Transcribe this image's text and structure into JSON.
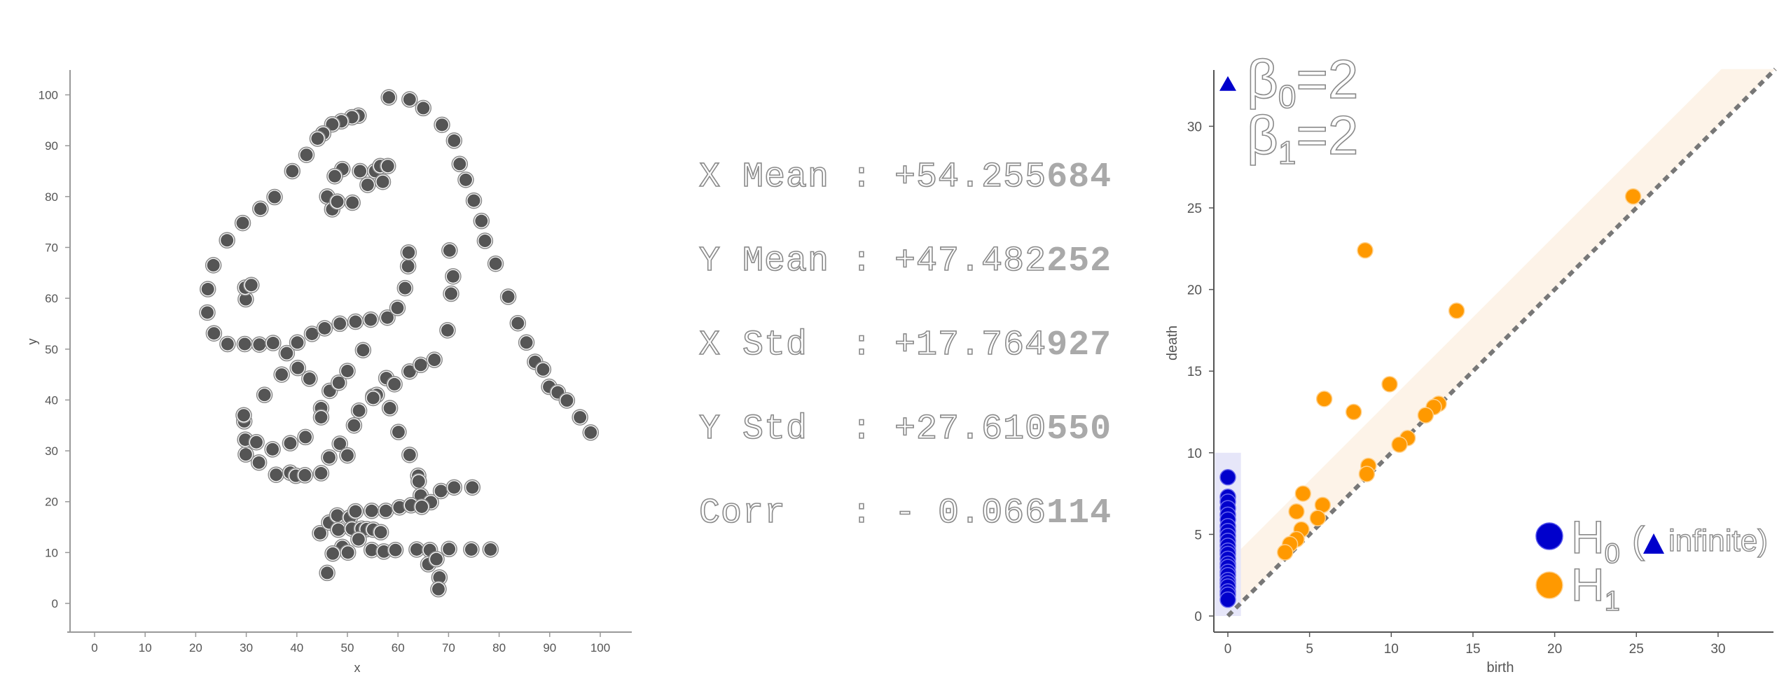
{
  "chart_data": [
    {
      "type": "scatter",
      "title": "",
      "xlabel": "x",
      "ylabel": "y",
      "xlim": [
        -5,
        105
      ],
      "ylim": [
        -5,
        105
      ],
      "xticks": [
        "0",
        "10",
        "20",
        "30",
        "40",
        "50",
        "60",
        "70",
        "80",
        "90",
        "100"
      ],
      "yticks": [
        "0",
        "10",
        "20",
        "30",
        "40",
        "50",
        "60",
        "70",
        "80",
        "90",
        "100"
      ],
      "marker_color": "#555555",
      "points": [
        [
          58.2,
          99.5
        ],
        [
          62.3,
          99.1
        ],
        [
          65.0,
          97.4
        ],
        [
          68.7,
          94.1
        ],
        [
          71.1,
          91.0
        ],
        [
          72.2,
          86.4
        ],
        [
          73.4,
          83.3
        ],
        [
          75.0,
          79.2
        ],
        [
          76.5,
          75.2
        ],
        [
          77.2,
          71.3
        ],
        [
          79.3,
          66.8
        ],
        [
          81.8,
          60.3
        ],
        [
          83.7,
          55.1
        ],
        [
          85.4,
          51.3
        ],
        [
          87.1,
          47.5
        ],
        [
          88.7,
          46.0
        ],
        [
          89.9,
          42.6
        ],
        [
          91.6,
          41.5
        ],
        [
          93.4,
          39.9
        ],
        [
          96.0,
          36.6
        ],
        [
          98.1,
          33.6
        ],
        [
          52.2,
          95.9
        ],
        [
          50.9,
          95.6
        ],
        [
          48.8,
          94.8
        ],
        [
          47.0,
          94.2
        ],
        [
          45.2,
          92.4
        ],
        [
          44.1,
          91.4
        ],
        [
          41.9,
          88.2
        ],
        [
          39.1,
          85.0
        ],
        [
          35.6,
          79.9
        ],
        [
          32.8,
          77.6
        ],
        [
          29.3,
          74.8
        ],
        [
          26.2,
          71.4
        ],
        [
          23.5,
          66.5
        ],
        [
          22.4,
          61.8
        ],
        [
          22.3,
          57.2
        ],
        [
          23.6,
          53.1
        ],
        [
          26.3,
          51.0
        ],
        [
          29.7,
          51.0
        ],
        [
          32.6,
          50.9
        ],
        [
          35.3,
          51.2
        ],
        [
          38.0,
          49.2
        ],
        [
          40.1,
          51.3
        ],
        [
          43.0,
          53.0
        ],
        [
          45.5,
          54.1
        ],
        [
          48.5,
          55.0
        ],
        [
          51.6,
          55.4
        ],
        [
          54.6,
          55.8
        ],
        [
          57.9,
          56.2
        ],
        [
          59.9,
          58.1
        ],
        [
          61.4,
          62.0
        ],
        [
          62.0,
          66.3
        ],
        [
          62.1,
          69.0
        ],
        [
          29.9,
          59.8
        ],
        [
          29.8,
          62.1
        ],
        [
          31.0,
          62.6
        ],
        [
          46.0,
          80.0
        ],
        [
          47.0,
          77.5
        ],
        [
          48.0,
          79.0
        ],
        [
          49.0,
          85.4
        ],
        [
          47.5,
          84.0
        ],
        [
          51.0,
          78.8
        ],
        [
          52.5,
          85.0
        ],
        [
          54.0,
          82.3
        ],
        [
          55.5,
          85.0
        ],
        [
          56.5,
          86.0
        ],
        [
          58.0,
          86.0
        ],
        [
          57.0,
          82.9
        ],
        [
          29.6,
          35.8
        ],
        [
          29.5,
          37.0
        ],
        [
          33.6,
          41.0
        ],
        [
          37.0,
          45.0
        ],
        [
          40.2,
          46.3
        ],
        [
          42.5,
          44.2
        ],
        [
          44.8,
          38.4
        ],
        [
          46.5,
          41.8
        ],
        [
          48.3,
          43.4
        ],
        [
          50.0,
          45.7
        ],
        [
          53.1,
          49.8
        ],
        [
          55.1,
          40.7
        ],
        [
          55.8,
          41.0
        ],
        [
          57.7,
          44.3
        ],
        [
          59.3,
          43.1
        ],
        [
          62.3,
          45.6
        ],
        [
          64.5,
          46.9
        ],
        [
          67.2,
          47.9
        ],
        [
          69.8,
          53.7
        ],
        [
          70.5,
          60.9
        ],
        [
          70.9,
          64.3
        ],
        [
          70.2,
          69.4
        ],
        [
          29.9,
          29.3
        ],
        [
          29.8,
          32.2
        ],
        [
          32.0,
          31.7
        ],
        [
          35.2,
          30.3
        ],
        [
          38.7,
          31.5
        ],
        [
          41.7,
          32.7
        ],
        [
          44.8,
          36.6
        ],
        [
          48.5,
          31.4
        ],
        [
          51.3,
          35.0
        ],
        [
          52.3,
          37.9
        ],
        [
          55.1,
          40.4
        ],
        [
          58.4,
          38.4
        ],
        [
          60.1,
          33.7
        ],
        [
          62.3,
          29.2
        ],
        [
          64.0,
          25.1
        ],
        [
          64.1,
          24.0
        ],
        [
          64.5,
          21.2
        ],
        [
          66.5,
          19.9
        ],
        [
          68.5,
          22.1
        ],
        [
          71.1,
          22.8
        ],
        [
          74.7,
          22.8
        ],
        [
          32.5,
          27.7
        ],
        [
          35.9,
          25.3
        ],
        [
          38.7,
          25.7
        ],
        [
          39.8,
          25.1
        ],
        [
          41.6,
          25.2
        ],
        [
          44.8,
          25.6
        ],
        [
          46.4,
          28.7
        ],
        [
          50.0,
          29.1
        ],
        [
          44.6,
          13.8
        ],
        [
          46.4,
          15.9
        ],
        [
          48.0,
          17.3
        ],
        [
          50.5,
          16.9
        ],
        [
          51.6,
          18.1
        ],
        [
          54.8,
          18.2
        ],
        [
          57.6,
          18.2
        ],
        [
          60.3,
          18.9
        ],
        [
          62.6,
          19.3
        ],
        [
          64.7,
          19.0
        ],
        [
          48.2,
          14.5
        ],
        [
          50.9,
          14.7
        ],
        [
          52.8,
          14.7
        ],
        [
          53.8,
          14.6
        ],
        [
          55.1,
          14.5
        ],
        [
          56.6,
          14.0
        ],
        [
          52.2,
          12.6
        ],
        [
          49.0,
          11.1
        ],
        [
          50.1,
          10.0
        ],
        [
          47.1,
          9.8
        ],
        [
          46.0,
          6.0
        ],
        [
          54.8,
          10.5
        ],
        [
          57.2,
          10.2
        ],
        [
          59.5,
          10.5
        ],
        [
          63.7,
          10.6
        ],
        [
          66.3,
          10.5
        ],
        [
          70.1,
          10.7
        ],
        [
          74.5,
          10.6
        ],
        [
          78.3,
          10.6
        ],
        [
          66.0,
          7.7
        ],
        [
          67.6,
          8.7
        ],
        [
          68.2,
          5.1
        ],
        [
          68.0,
          2.8
        ]
      ]
    },
    {
      "type": "scatter",
      "title": "",
      "xlabel": "birth",
      "ylabel": "death",
      "xlim": [
        -0.8,
        33.5
      ],
      "ylim": [
        -0.8,
        33.5
      ],
      "xticks": [
        "0",
        "5",
        "10",
        "15",
        "20",
        "25",
        "30"
      ],
      "yticks": [
        "0",
        "5",
        "10",
        "15",
        "20",
        "25",
        "30"
      ],
      "diagonal_style": "dashed",
      "series": [
        {
          "name": "H",
          "subscript": "0",
          "color": "#0000cc",
          "points": [
            [
              0,
              8.5
            ],
            [
              0,
              7.3
            ],
            [
              0,
              7.0
            ],
            [
              0,
              6.6
            ],
            [
              0,
              6.2
            ],
            [
              0,
              5.9
            ],
            [
              0,
              5.5
            ],
            [
              0,
              5.2
            ],
            [
              0,
              4.9
            ],
            [
              0,
              4.6
            ],
            [
              0,
              4.3
            ],
            [
              0,
              4.0
            ],
            [
              0,
              3.8
            ],
            [
              0,
              3.5
            ],
            [
              0,
              3.2
            ],
            [
              0,
              3.0
            ],
            [
              0,
              2.7
            ],
            [
              0,
              2.5
            ],
            [
              0,
              2.2
            ],
            [
              0,
              2.0
            ],
            [
              0,
              1.8
            ],
            [
              0,
              1.5
            ],
            [
              0,
              1.3
            ],
            [
              0,
              1.0
            ]
          ]
        },
        {
          "name": "H",
          "subscript": "1",
          "color": "#ff9900",
          "points": [
            [
              24.8,
              25.7
            ],
            [
              14.0,
              18.7
            ],
            [
              8.4,
              22.4
            ],
            [
              5.9,
              13.3
            ],
            [
              7.7,
              12.5
            ],
            [
              9.9,
              14.2
            ],
            [
              12.9,
              13.0
            ],
            [
              12.6,
              12.8
            ],
            [
              12.1,
              12.3
            ],
            [
              11.0,
              10.9
            ],
            [
              10.5,
              10.5
            ],
            [
              8.6,
              9.2
            ],
            [
              8.5,
              8.7
            ],
            [
              4.6,
              7.5
            ],
            [
              5.8,
              6.8
            ],
            [
              4.2,
              6.4
            ],
            [
              5.5,
              6.0
            ],
            [
              4.5,
              5.3
            ],
            [
              4.2,
              4.7
            ],
            [
              3.8,
              4.4
            ],
            [
              3.5,
              3.9
            ]
          ]
        }
      ],
      "infinite": {
        "label": "infinite",
        "points": [
          [
            0,
            32.6
          ]
        ]
      },
      "betti": [
        {
          "symbol": "β",
          "sub": "0",
          "value": "=2"
        },
        {
          "symbol": "β",
          "sub": "1",
          "value": "=2"
        }
      ]
    }
  ],
  "stats": [
    {
      "label": "X Mean",
      "outline_value": "+54.255",
      "solid_value": "684"
    },
    {
      "label": "Y Mean",
      "outline_value": "+47.482",
      "solid_value": "252"
    },
    {
      "label": "X Std ",
      "outline_value": "+17.764",
      "solid_value": "927"
    },
    {
      "label": "Y Std ",
      "outline_value": "+27.610",
      "solid_value": "550"
    },
    {
      "label": "Corr  ",
      "outline_value": "- 0.066",
      "solid_value": "114"
    }
  ]
}
